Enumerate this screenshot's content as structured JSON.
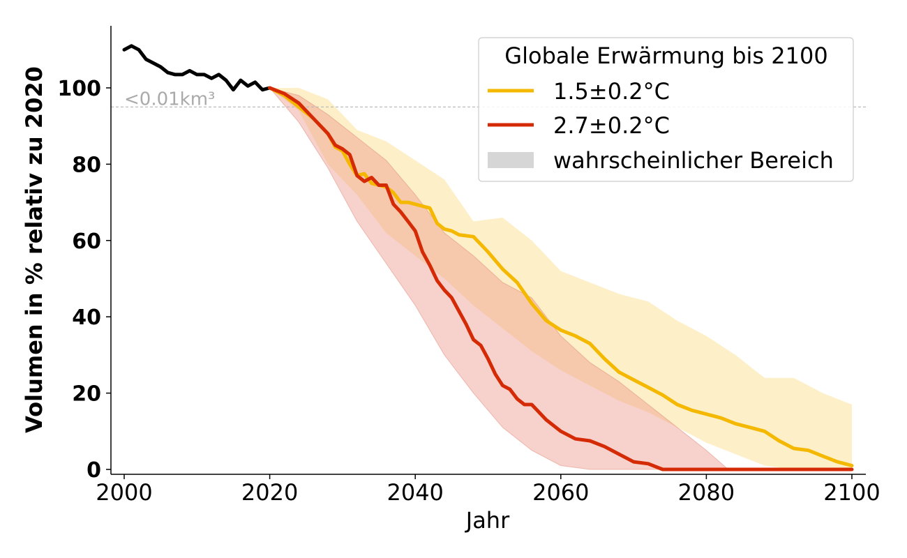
{
  "chart_data": {
    "type": "line",
    "title": "",
    "xlabel": "Jahr",
    "ylabel": "Volumen in % relativ zu 2020",
    "xlim": [
      1998,
      2102
    ],
    "ylim": [
      -1,
      116
    ],
    "x_ticks": [
      "2000",
      "2020",
      "2040",
      "2060",
      "2080",
      "2100"
    ],
    "y_ticks": [
      "0",
      "20",
      "40",
      "60",
      "80",
      "100"
    ],
    "reference_line": {
      "y": 95,
      "label": "<0.01km³",
      "style": "dashed",
      "color": "#bbbbbb"
    },
    "legend": {
      "title": "Globale Erwärmung bis 2100",
      "placement": "top-right",
      "entries": [
        {
          "label": "1.5±0.2°C",
          "color": "#f5b800",
          "kind": "line"
        },
        {
          "label": "2.7±0.2°C",
          "color": "#d42a05",
          "kind": "line"
        },
        {
          "label": "wahrscheinlicher Bereich",
          "color": "#d6d6d6",
          "kind": "band"
        }
      ]
    },
    "series": [
      {
        "color": "#000000",
        "x": [
          2000,
          2001,
          2002,
          2003,
          2004,
          2005,
          2006,
          2007,
          2008,
          2009,
          2010,
          2011,
          2012,
          2013,
          2014,
          2015,
          2016,
          2017,
          2018,
          2019,
          2020
        ],
        "y": [
          110,
          111,
          110,
          107.5,
          106.5,
          105.5,
          104,
          103.5,
          103.5,
          104.5,
          103.5,
          103.5,
          102.5,
          103.5,
          102,
          99.5,
          102,
          100.5,
          101.5,
          99.5,
          100
        ]
      },
      {
        "name": "1.5±0.2°C",
        "color": "#f5b800",
        "x": [
          2020,
          2022,
          2024,
          2026,
          2028,
          2029,
          2030,
          2031,
          2032,
          2033,
          2034,
          2035,
          2036,
          2037,
          2038,
          2039,
          2040,
          2041,
          2042,
          2043,
          2044,
          2045,
          2046,
          2048,
          2050,
          2052,
          2054,
          2056,
          2058,
          2060,
          2062,
          2064,
          2066,
          2068,
          2070,
          2072,
          2074,
          2076,
          2078,
          2080,
          2082,
          2084,
          2086,
          2088,
          2090,
          2092,
          2094,
          2096,
          2098,
          2100
        ],
        "y": [
          100,
          98,
          95,
          92,
          88,
          84.5,
          83.5,
          80,
          77,
          77.5,
          75,
          74.5,
          74,
          72.5,
          70,
          70,
          69.5,
          69,
          68.5,
          64.5,
          63,
          62.5,
          61.5,
          61,
          57,
          52.5,
          49,
          43.5,
          39,
          36.5,
          35,
          33,
          29,
          25.5,
          23.5,
          21.5,
          19.5,
          17,
          15.5,
          14.5,
          13.5,
          12,
          11,
          10,
          7.5,
          5.5,
          5,
          3.5,
          2,
          1
        ]
      },
      {
        "name": "2.7±0.2°C",
        "color": "#d42a05",
        "x": [
          2020,
          2022,
          2024,
          2026,
          2028,
          2029,
          2030,
          2031,
          2032,
          2033,
          2034,
          2035,
          2036,
          2037,
          2038,
          2039,
          2040,
          2041,
          2042,
          2043,
          2044,
          2045,
          2046,
          2047,
          2048,
          2049,
          2050,
          2051,
          2052,
          2053,
          2054,
          2055,
          2056,
          2058,
          2060,
          2062,
          2064,
          2066,
          2068,
          2070,
          2072,
          2074,
          2076,
          2078,
          2080,
          2090,
          2100
        ],
        "y": [
          100,
          98.5,
          96,
          92,
          88,
          85,
          84,
          82.5,
          77,
          75.5,
          76.5,
          74.5,
          74.5,
          69.5,
          67.5,
          65,
          62.5,
          57,
          53.5,
          49.5,
          47,
          45,
          41.5,
          38,
          34,
          32.5,
          29,
          25,
          22,
          21,
          18.5,
          17,
          17,
          13,
          10,
          8,
          7.5,
          6,
          4,
          2,
          1.5,
          0,
          0,
          0,
          0,
          0,
          0
        ]
      }
    ],
    "bands": [
      {
        "name": "1.5±0.2°C",
        "color": "#f5b800",
        "x": [
          2020,
          2024,
          2028,
          2032,
          2036,
          2040,
          2044,
          2048,
          2052,
          2056,
          2060,
          2064,
          2068,
          2072,
          2076,
          2080,
          2084,
          2088,
          2092,
          2096,
          2100
        ],
        "upper": [
          100,
          100,
          97,
          89,
          86,
          81,
          76,
          65,
          66,
          60,
          52,
          49,
          46,
          44,
          39,
          35,
          30,
          24,
          24,
          20,
          17
        ],
        "lower": [
          100,
          94,
          80,
          72,
          62,
          56,
          50,
          43,
          37,
          31,
          26,
          22,
          18,
          15,
          11,
          7,
          4,
          1,
          0,
          0,
          0
        ]
      },
      {
        "name": "2.7±0.2°C",
        "color": "#ee9a8c",
        "x": [
          2020,
          2024,
          2028,
          2032,
          2036,
          2040,
          2044,
          2048,
          2052,
          2056,
          2060,
          2064,
          2068,
          2072,
          2076,
          2080,
          2083
        ],
        "upper": [
          100,
          98,
          93,
          87,
          81,
          72,
          62,
          56,
          49,
          45,
          35,
          28,
          23,
          17,
          11,
          5,
          0
        ],
        "lower": [
          100,
          91,
          79,
          65,
          54,
          43,
          30,
          20,
          11,
          5,
          1,
          0,
          0,
          0,
          0,
          0,
          0
        ]
      }
    ]
  }
}
